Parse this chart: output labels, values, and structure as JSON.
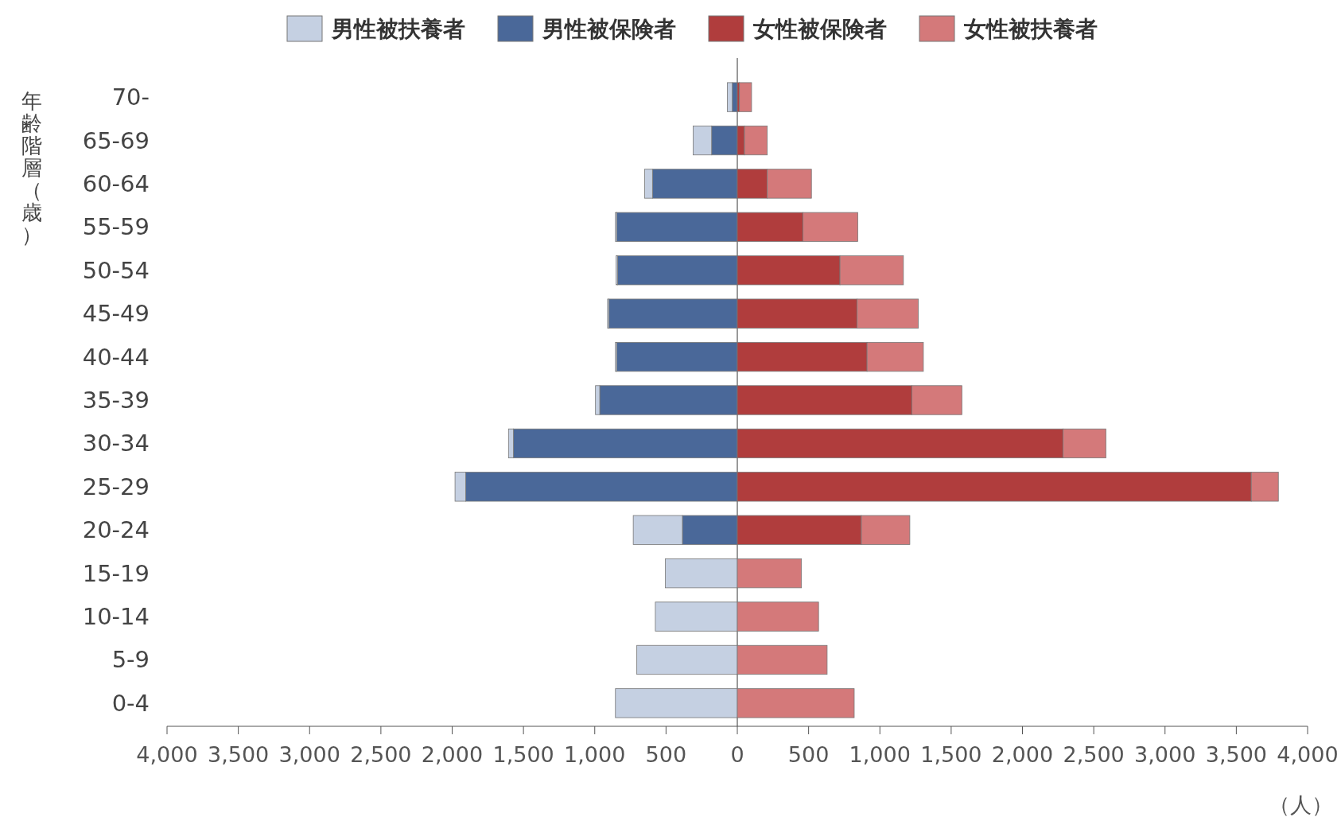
{
  "chart_data": {
    "type": "bar",
    "orientation": "horizontal",
    "stacked": true,
    "ylabel": "年齢階層（歳）",
    "xlabel": "（人）",
    "categories": [
      "70-",
      "65-69",
      "60-64",
      "55-59",
      "50-54",
      "45-49",
      "40-44",
      "35-39",
      "30-34",
      "25-29",
      "20-24",
      "15-19",
      "10-14",
      "5-9",
      "0-4"
    ],
    "series": [
      {
        "name": "男性被保険者",
        "color": "#4a6899",
        "values": [
          -35,
          -180,
          -595,
          -845,
          -840,
          -900,
          -845,
          -965,
          -1570,
          -1905,
          -385,
          0,
          0,
          0,
          0
        ]
      },
      {
        "name": "男性被扶養者",
        "color": "#c5d0e2",
        "values": [
          -35,
          -130,
          -55,
          -10,
          -10,
          -10,
          -10,
          -30,
          -35,
          -75,
          -345,
          -505,
          -575,
          -705,
          -855
        ]
      },
      {
        "name": "女性被保険者",
        "color": "#b03d3d",
        "values": [
          15,
          50,
          210,
          460,
          720,
          840,
          910,
          1225,
          2285,
          3605,
          870,
          0,
          0,
          0,
          0
        ]
      },
      {
        "name": "女性被扶養者",
        "color": "#d4797a",
        "values": [
          85,
          160,
          310,
          385,
          445,
          430,
          395,
          350,
          300,
          190,
          340,
          450,
          570,
          630,
          820
        ]
      }
    ],
    "xlim": [
      -4000,
      4000
    ],
    "xticks": [
      {
        "value": -4000,
        "label": "4,000"
      },
      {
        "value": -3500,
        "label": "3,500"
      },
      {
        "value": -3000,
        "label": "3,000"
      },
      {
        "value": -2500,
        "label": "2,500"
      },
      {
        "value": -2000,
        "label": "2,000"
      },
      {
        "value": -1500,
        "label": "1,500"
      },
      {
        "value": -1000,
        "label": "1,000"
      },
      {
        "value": -500,
        "label": "500"
      },
      0,
      500,
      {
        "value": 1000,
        "label": "1,000"
      },
      {
        "value": 1500,
        "label": "1,500"
      },
      {
        "value": 2000,
        "label": "2,000"
      },
      {
        "value": 2500,
        "label": "2,500"
      },
      {
        "value": 3000,
        "label": "3,000"
      },
      {
        "value": 3500,
        "label": "3,500"
      },
      {
        "value": 4000,
        "label": "4,000"
      }
    ],
    "ref_lines": [
      {
        "axis": "x",
        "value": 0,
        "color": "#555555"
      }
    ],
    "legend": "top",
    "grid": false
  }
}
